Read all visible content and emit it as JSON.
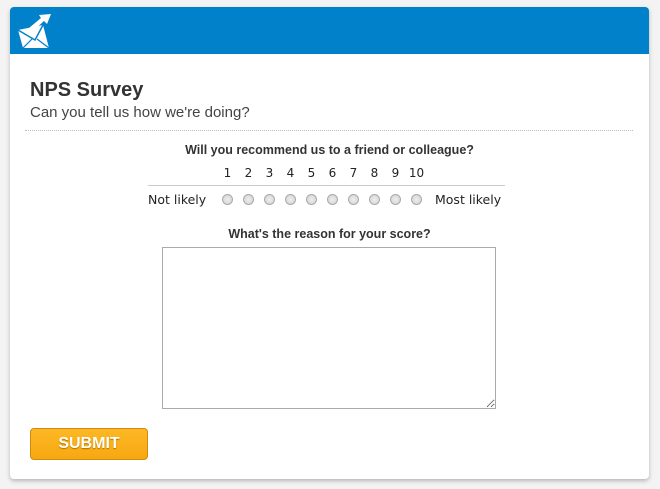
{
  "header": {
    "brand_color": "#0081c9",
    "logo": "envelope-arrow-logo"
  },
  "survey": {
    "title": "NPS Survey",
    "subtitle": "Can you tell us how we're doing?",
    "question1": "Will you recommend us to a friend or colleague?",
    "scale": [
      "1",
      "2",
      "3",
      "4",
      "5",
      "6",
      "7",
      "8",
      "9",
      "10"
    ],
    "low_label": "Not likely",
    "high_label": "Most likely",
    "selected": null,
    "question2": "What's the reason for your score?",
    "reason_value": ""
  },
  "submit": {
    "label": "SUBMIT",
    "color": "#fdb220"
  }
}
